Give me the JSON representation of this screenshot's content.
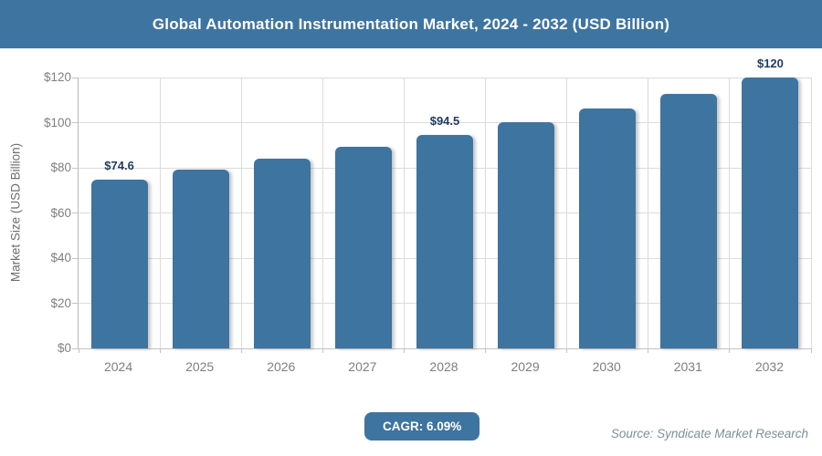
{
  "header": {
    "title": "Global Automation Instrumentation Market, 2024 - 2032 (USD Billion)"
  },
  "footer": {
    "cagr_label": "CAGR: 6.09%",
    "source": "Source: Syndicate Market Research"
  },
  "colors": {
    "accent": "#3e74a0",
    "bar": "#3e74a0",
    "grid": "#dcdcdc",
    "axis": "#c3c3c3",
    "tick_text": "#7f7f7f",
    "data_label": "#1f3a5f",
    "source_text": "#7d8f98"
  },
  "chart_data": {
    "type": "bar",
    "title": "Global Automation Instrumentation Market, 2024 - 2032 (USD Billion)",
    "categories": [
      "2024",
      "2025",
      "2026",
      "2027",
      "2028",
      "2029",
      "2030",
      "2031",
      "2032"
    ],
    "values": [
      74.6,
      79.1,
      84.0,
      89.1,
      94.5,
      100.3,
      106.4,
      112.8,
      120
    ],
    "bar_labels": [
      "$74.6",
      "",
      "",
      "",
      "$94.5",
      "",
      "",
      "",
      "$120"
    ],
    "xlabel": "",
    "ylabel": "Market Size (USD Billion)",
    "ylim": [
      0,
      120
    ],
    "y_tick_step": 20,
    "y_ticks": [
      {
        "label": "$0",
        "value": 0
      },
      {
        "label": "$20",
        "value": 20
      },
      {
        "label": "$40",
        "value": 40
      },
      {
        "label": "$60",
        "value": 60
      },
      {
        "label": "$80",
        "value": 80
      },
      {
        "label": "$100",
        "value": 100
      },
      {
        "label": "$120",
        "value": 120
      }
    ],
    "grid": true,
    "legend": "none",
    "bar_color": "#3e74a0",
    "annotations": {
      "cagr": "CAGR: 6.09%",
      "source": "Source: Syndicate Market Research"
    }
  }
}
